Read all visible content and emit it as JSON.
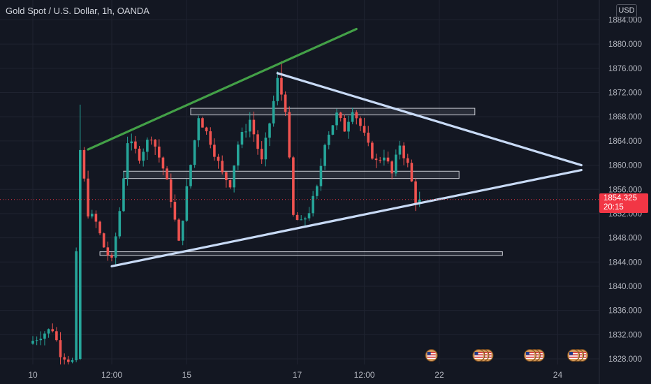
{
  "header": {
    "symbol_title": "Gold Spot / U.S. Dollar, 1h, OANDA",
    "currency": "USD"
  },
  "last_price": {
    "value": "1854.325",
    "countdown": "20:15"
  },
  "colors": {
    "background": "#131722",
    "up": "#26a69a",
    "down": "#ef5350",
    "resistance_trendline": "#43a047",
    "triangle_trendlines": "#c8daf5",
    "price_line": "#f23645",
    "axis_text": "#b2b5be"
  },
  "chart_data": {
    "type": "candlestick",
    "instrument": "Gold Spot / U.S. Dollar",
    "interval": "1h",
    "source": "OANDA",
    "ylim": [
      1826,
      1885
    ],
    "y_ticks": [
      "1884.000",
      "1880.000",
      "1876.000",
      "1872.000",
      "1868.000",
      "1864.000",
      "1860.000",
      "1856.000",
      "1852.000",
      "1848.000",
      "1844.000",
      "1840.000",
      "1836.000",
      "1832.000",
      "1828.000"
    ],
    "x_ticks": [
      {
        "label": "10",
        "bar": 0
      },
      {
        "label": "12:00",
        "bar": 20
      },
      {
        "label": "15",
        "bar": 39
      },
      {
        "label": "17",
        "bar": 67
      },
      {
        "label": "12:00",
        "bar": 84
      },
      {
        "label": "22",
        "bar": 103
      },
      {
        "label": "24",
        "bar": 133
      }
    ],
    "last_price": 1854.325,
    "price_anchors": [
      [
        0,
        1830.5
      ],
      [
        3,
        1832
      ],
      [
        6,
        1833
      ],
      [
        8,
        1829
      ],
      [
        11,
        1827.5
      ],
      [
        13,
        1862.5
      ],
      [
        15,
        1852.2
      ],
      [
        17,
        1850.5
      ],
      [
        19,
        1846.5
      ],
      [
        21,
        1844
      ],
      [
        23,
        1852.5
      ],
      [
        25,
        1864
      ],
      [
        28,
        1861.5
      ],
      [
        31,
        1865
      ],
      [
        34,
        1859.5
      ],
      [
        36,
        1854.5
      ],
      [
        38,
        1847
      ],
      [
        40,
        1856
      ],
      [
        43,
        1868.2
      ],
      [
        46,
        1864
      ],
      [
        49,
        1858.5
      ],
      [
        51,
        1857
      ],
      [
        53,
        1863.5
      ],
      [
        56,
        1867.5
      ],
      [
        59,
        1860.5
      ],
      [
        61,
        1867
      ],
      [
        63,
        1874
      ],
      [
        65,
        1869.5
      ],
      [
        67,
        1851.5
      ],
      [
        69,
        1850.3
      ],
      [
        71,
        1852.5
      ],
      [
        73,
        1856
      ],
      [
        75,
        1864
      ],
      [
        78,
        1868.3
      ],
      [
        80,
        1866
      ],
      [
        82,
        1869.5
      ],
      [
        84,
        1866.5
      ],
      [
        86,
        1863
      ],
      [
        88,
        1860.5
      ],
      [
        90,
        1861.8
      ],
      [
        92,
        1858.5
      ],
      [
        94,
        1863.5
      ],
      [
        96,
        1860
      ],
      [
        98,
        1854.3
      ]
    ],
    "support_zones": [
      {
        "low": 1868.3,
        "high": 1869.4,
        "bar_start": 40,
        "bar_end": 112
      },
      {
        "low": 1857.8,
        "high": 1859.0,
        "bar_start": 23,
        "bar_end": 108
      },
      {
        "low": 1845.1,
        "high": 1845.7,
        "bar_start": 17,
        "bar_end": 119
      }
    ],
    "trendlines": [
      {
        "name": "Rising resistance",
        "color": "#43a047",
        "points": [
          [
            14,
            1862.6
          ],
          [
            82,
            1882.5
          ]
        ]
      },
      {
        "name": "Descending triangle upper",
        "color": "#c8daf5",
        "points": [
          [
            62,
            1875.2
          ],
          [
            139,
            1860.0
          ]
        ]
      },
      {
        "name": "Triangle lower support",
        "color": "#c8daf5",
        "points": [
          [
            20,
            1843.3
          ],
          [
            139,
            1859.2
          ]
        ]
      }
    ],
    "event_markers": [
      {
        "bar": 101,
        "count": 1
      },
      {
        "bar": 113,
        "count": 3
      },
      {
        "bar": 126,
        "count": 3
      },
      {
        "bar": 137,
        "count": 3
      }
    ]
  }
}
